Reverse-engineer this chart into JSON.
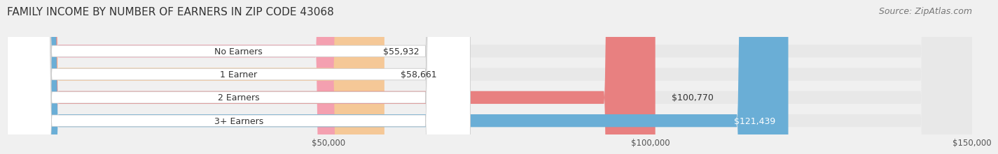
{
  "title": "FAMILY INCOME BY NUMBER OF EARNERS IN ZIP CODE 43068",
  "source": "Source: ZipAtlas.com",
  "categories": [
    "No Earners",
    "1 Earner",
    "2 Earners",
    "3+ Earners"
  ],
  "values": [
    55932,
    58661,
    100770,
    121439
  ],
  "labels": [
    "$55,932",
    "$58,661",
    "$100,770",
    "$121,439"
  ],
  "bar_colors": [
    "#f4a0b0",
    "#f5c897",
    "#e88080",
    "#6aaed6"
  ],
  "label_colors": [
    "#555555",
    "#555555",
    "#555555",
    "#ffffff"
  ],
  "xlim": [
    0,
    150000
  ],
  "xticks": [
    50000,
    100000,
    150000
  ],
  "xticklabels": [
    "$50,000",
    "$100,000",
    "$150,000"
  ],
  "background_color": "#f0f0f0",
  "bar_bg_color": "#e8e8e8",
  "title_fontsize": 11,
  "source_fontsize": 9,
  "label_fontsize": 9,
  "category_fontsize": 9,
  "bar_height": 0.55
}
